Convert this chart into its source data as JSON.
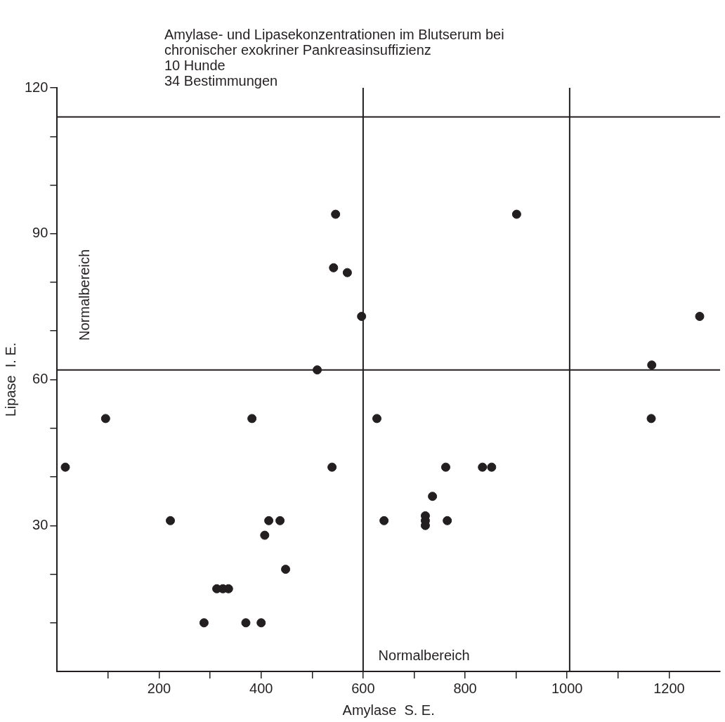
{
  "chart_data": {
    "type": "scatter",
    "title": "Amylase- und Lipasekonzentrationen im Blutserum bei chronischer exokriner Pankreasinsuffizienz",
    "subtitle": "10 Hunde\n34 Bestimmungen",
    "xlabel": "Amylase  S. E.",
    "ylabel": "Lipase  I. E.",
    "x": [
      16,
      95,
      222,
      288,
      313,
      325,
      336,
      370,
      400,
      382,
      415,
      407,
      437,
      448,
      510,
      542,
      546,
      539,
      569,
      597,
      627,
      641,
      722,
      722,
      722,
      736,
      762,
      765,
      834,
      852,
      901,
      1166,
      1165,
      1260
    ],
    "series": [
      {
        "color": "#231f20",
        "values": [
          42,
          52,
          31,
          10,
          17,
          17,
          17,
          10,
          10,
          52,
          31,
          28,
          31,
          21,
          62,
          83,
          94,
          42,
          82,
          73,
          52,
          31,
          32,
          31,
          30,
          36,
          42,
          31,
          42,
          42,
          94,
          63,
          52,
          73
        ]
      }
    ],
    "xlim": [
      0,
      1300
    ],
    "ylim": [
      0,
      120
    ],
    "xticks": [
      {
        "value": 100,
        "label": null
      },
      200,
      {
        "value": 300,
        "label": null
      },
      400,
      {
        "value": 500,
        "label": null
      },
      600,
      {
        "value": 700,
        "label": null
      },
      800,
      {
        "value": 900,
        "label": null
      },
      1000,
      {
        "value": 1100,
        "label": null
      },
      1200
    ],
    "yticks": [
      {
        "value": 10,
        "label": null
      },
      {
        "value": 20,
        "label": null
      },
      30,
      {
        "value": 40,
        "label": null
      },
      {
        "value": 50,
        "label": null
      },
      60,
      {
        "value": 70,
        "label": null
      },
      {
        "value": 80,
        "label": null
      },
      90,
      {
        "value": 100,
        "label": null
      },
      {
        "value": 110,
        "label": null
      },
      120
    ],
    "ref_lines": [
      {
        "axis": "x",
        "value": 600,
        "color": "#231f20"
      },
      {
        "axis": "x",
        "value": 1005,
        "color": "#231f20"
      },
      {
        "axis": "y",
        "value": 62,
        "color": "#231f20"
      },
      {
        "axis": "y",
        "value": 114,
        "color": "#231f20"
      }
    ],
    "annotations": [
      "Normalbereich",
      "Normalbereich"
    ],
    "grid": false,
    "legend": false,
    "marker": "circle"
  }
}
